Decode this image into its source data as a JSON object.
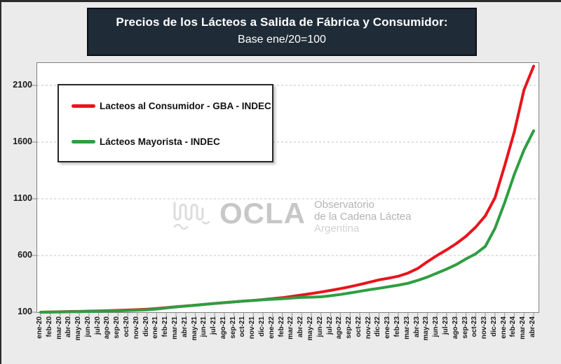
{
  "title": {
    "line1": "Precios de los Lácteos a Salida de Fábrica y Consumidor:",
    "line2": "Base ene/20=100"
  },
  "legend": {
    "items": [
      {
        "label": "Lacteos al Consumidor - GBA - INDEC",
        "color": "#e8141c"
      },
      {
        "label": "Lácteos Mayorista - INDEC",
        "color": "#2e9e41"
      }
    ]
  },
  "watermark": {
    "name": "OCLA",
    "line1": "Observatorio",
    "line2": "de la Cadena Láctea",
    "line3": "Argentina"
  },
  "chart_data": {
    "type": "line",
    "title": "Precios de los Lácteos a Salida de Fábrica y Consumidor: Base ene/20=100",
    "xlabel": "",
    "ylabel": "",
    "ylim": [
      100,
      2300
    ],
    "yticks": [
      100,
      600,
      1100,
      1600,
      2100
    ],
    "grid": "horizontal-dashed",
    "legend_position": "top-left",
    "x": [
      "ene-20",
      "feb-20",
      "mar-20",
      "abr-20",
      "may-20",
      "jun-20",
      "jul-20",
      "ago-20",
      "sep-20",
      "oct-20",
      "nov-20",
      "dic-20",
      "ene-21",
      "feb-21",
      "mar-21",
      "abr-21",
      "may-21",
      "jun-21",
      "jul-21",
      "ago-21",
      "sep-21",
      "oct-21",
      "nov-21",
      "dic-21",
      "ene-22",
      "feb-22",
      "mar-22",
      "abr-22",
      "may-22",
      "jun-22",
      "jul-22",
      "ago-22",
      "sep-22",
      "oct-22",
      "nov-22",
      "dic-22",
      "ene-23",
      "feb-23",
      "mar-23",
      "abr-23",
      "may-23",
      "jun-23",
      "jul-23",
      "ago-23",
      "sep-23",
      "oct-23",
      "nov-23",
      "dic-23",
      "ene-24",
      "feb-24",
      "mar-24",
      "abr-24"
    ],
    "series": [
      {
        "name": "Lacteos al Consumidor - GBA - INDEC",
        "color": "#e8141c",
        "values": [
          100,
          102,
          104,
          106,
          107,
          109,
          111,
          113,
          116,
          119,
          122,
          126,
          132,
          140,
          148,
          155,
          162,
          170,
          177,
          184,
          191,
          198,
          204,
          211,
          220,
          228,
          240,
          252,
          264,
          278,
          292,
          308,
          325,
          344,
          364,
          385,
          400,
          417,
          445,
          485,
          545,
          600,
          650,
          705,
          770,
          850,
          950,
          1110,
          1390,
          1690,
          2060,
          2270
        ]
      },
      {
        "name": "Lácteos Mayorista - INDEC",
        "color": "#2e9e41",
        "values": [
          100,
          101,
          102,
          104,
          105,
          106,
          108,
          110,
          112,
          115,
          118,
          121,
          128,
          137,
          146,
          154,
          161,
          169,
          177,
          184,
          191,
          198,
          204,
          210,
          214,
          219,
          225,
          230,
          233,
          236,
          245,
          256,
          270,
          284,
          298,
          311,
          325,
          338,
          355,
          380,
          410,
          445,
          480,
          520,
          570,
          615,
          680,
          840,
          1065,
          1315,
          1530,
          1700
        ]
      }
    ]
  }
}
